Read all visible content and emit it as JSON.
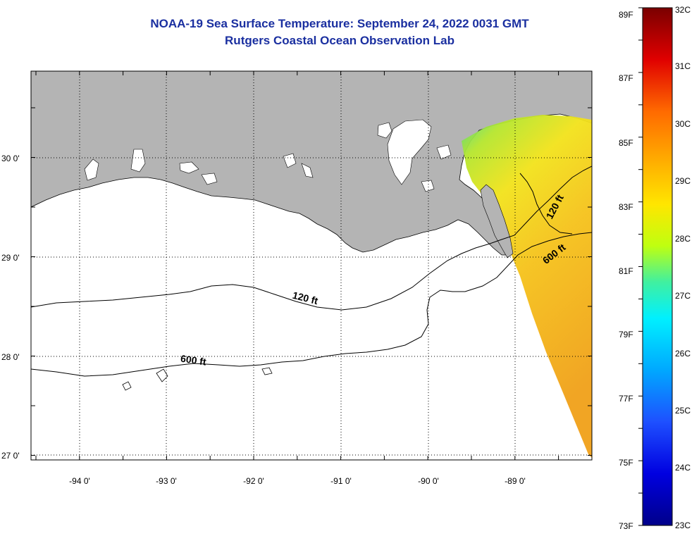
{
  "title": "NOAA-19 Sea Surface Temperature:  September 24, 2022 0031 GMT",
  "subtitle": "Rutgers Coastal Ocean Observation Lab",
  "map": {
    "lat_labels": [
      "30 0'",
      "29 0'",
      "28 0'",
      "27 0'"
    ],
    "lon_labels": [
      "-94 0'",
      "-93 0'",
      "-92 0'",
      "-91 0'",
      "-90 0'",
      "-89 0'"
    ],
    "contour_labels": [
      {
        "text": "120 ft",
        "depth_ft": 120
      },
      {
        "text": "600 ft",
        "depth_ft": 600
      },
      {
        "text": "120 ft",
        "depth_ft": 120
      },
      {
        "text": "600 ft",
        "depth_ft": 600
      }
    ],
    "colors": {
      "land": "#b4b4b4",
      "ocean_no_data": "#ffffff",
      "title": "#1a2fa0"
    }
  },
  "colorbar": {
    "fahrenheit_labels": [
      "89F",
      "87F",
      "85F",
      "83F",
      "81F",
      "79F",
      "77F",
      "75F",
      "73F"
    ],
    "celsius_labels": [
      "32C",
      "31C",
      "30C",
      "29C",
      "28C",
      "27C",
      "26C",
      "25C",
      "24C",
      "23C"
    ],
    "range_c": [
      23,
      32
    ],
    "range_f": [
      73,
      89
    ],
    "colormap": "jet"
  }
}
